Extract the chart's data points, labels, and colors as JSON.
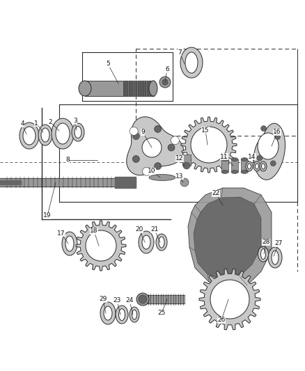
{
  "bg_color": "#ffffff",
  "lc": "#2a2a2a",
  "fig_width": 4.38,
  "fig_height": 5.33,
  "dpi": 100,
  "gray_light": "#c8c8c8",
  "gray_mid": "#999999",
  "gray_dark": "#666666",
  "white": "#ffffff",
  "label_fs": 6.5
}
